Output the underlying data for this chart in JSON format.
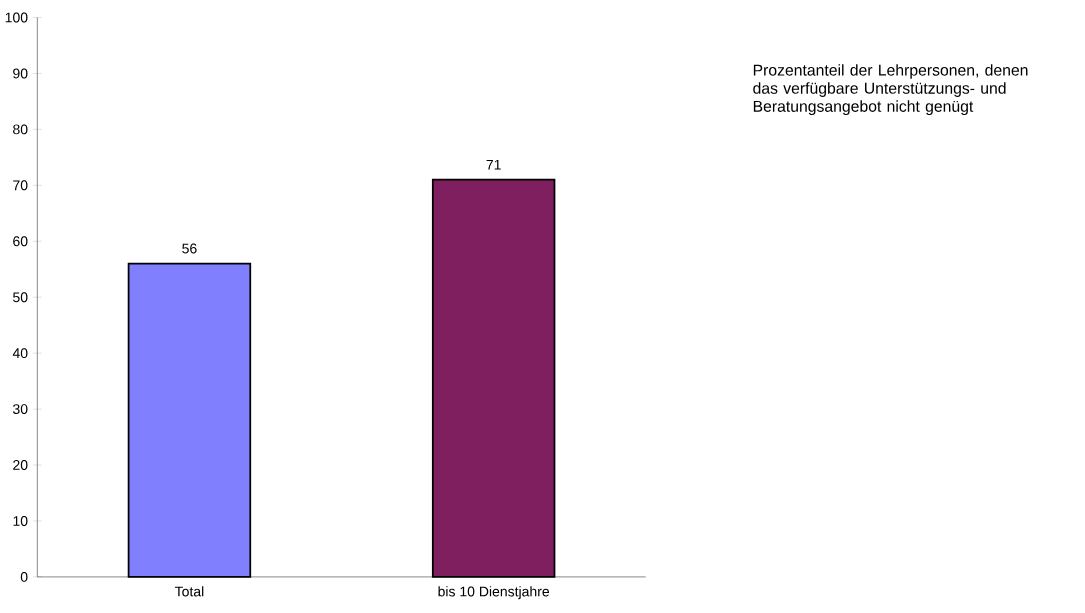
{
  "chart_data": {
    "type": "bar",
    "title": "Prozentanteil der Lehrpersonen, denen das verfügbare Unterstützungs- und Beratungsangebot nicht genügt",
    "categories": [
      "Total",
      "bis 10 Dienstjahre"
    ],
    "values": [
      56,
      71
    ],
    "colors": [
      "#8080ff",
      "#7f1f5f"
    ],
    "ylim": [
      0,
      100
    ],
    "yticks": [
      0,
      10,
      20,
      30,
      40,
      50,
      60,
      70,
      80,
      90,
      100
    ],
    "data_labels": true,
    "grid": false
  }
}
